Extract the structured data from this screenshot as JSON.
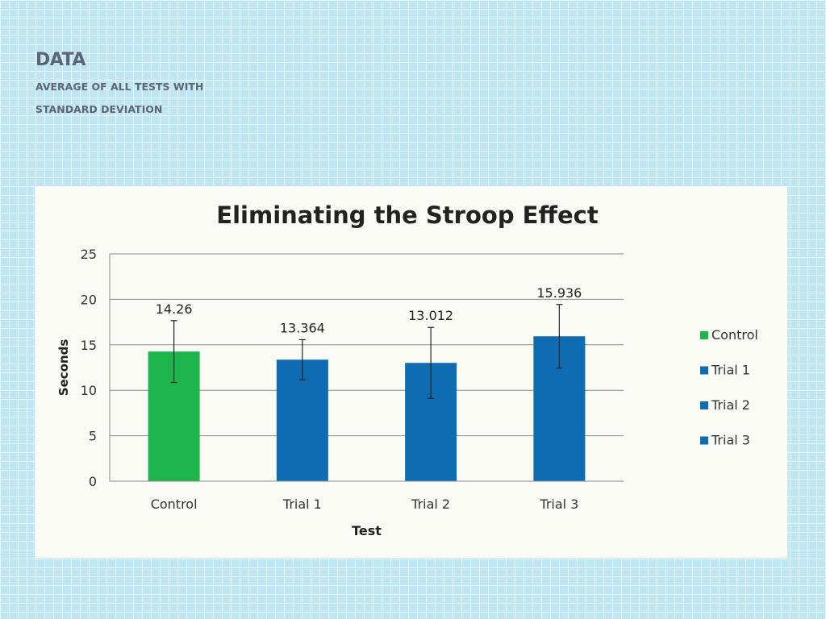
{
  "slide": {
    "title": "DATA",
    "subtitle_line1": "AVERAGE OF ALL TESTS WITH",
    "subtitle_line2": "STANDARD DEVIATION"
  },
  "chart_data": {
    "type": "bar",
    "title": "Eliminating the Stroop Effect",
    "xlabel": "Test",
    "ylabel": "Seconds",
    "categories": [
      "Control",
      "Trial 1",
      "Trial 2",
      "Trial 3"
    ],
    "values": [
      14.26,
      13.364,
      13.012,
      15.936
    ],
    "value_labels": [
      "14.26",
      "13.364",
      "13.012",
      "15.936"
    ],
    "error_bars": [
      3.4,
      2.2,
      3.9,
      3.5
    ],
    "colors": [
      "#1db64c",
      "#0e6db2",
      "#0e6db2",
      "#0e6db2"
    ],
    "ylim": [
      0,
      25
    ],
    "yticks": [
      0,
      5,
      10,
      15,
      20,
      25
    ],
    "grid": true,
    "legend": {
      "position": "right",
      "items": [
        {
          "label": "Control",
          "color": "#1db64c"
        },
        {
          "label": "Trial 1",
          "color": "#0e6db2"
        },
        {
          "label": "Trial 2",
          "color": "#0e6db2"
        },
        {
          "label": "Trial 3",
          "color": "#0e6db2"
        }
      ]
    }
  }
}
